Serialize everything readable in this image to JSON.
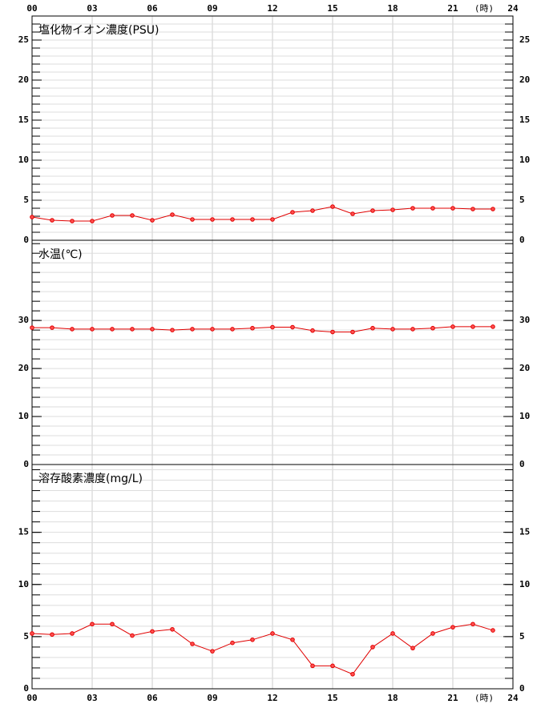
{
  "x_axis": {
    "xlim": [
      0,
      24
    ],
    "xticks": [
      {
        "value": 0,
        "label": "00"
      },
      {
        "value": 3,
        "label": "03"
      },
      {
        "value": 6,
        "label": "06"
      },
      {
        "value": 9,
        "label": "09"
      },
      {
        "value": 12,
        "label": "12"
      },
      {
        "value": 15,
        "label": "15"
      },
      {
        "value": 18,
        "label": "18"
      },
      {
        "value": 21,
        "label": "21"
      },
      {
        "value": 24,
        "label": "24"
      }
    ],
    "unit": "(時)"
  },
  "chart_data": [
    {
      "type": "line",
      "title": "塩化物イオン濃度(PSU)",
      "color": "#e00000",
      "grid": true,
      "x": [
        0,
        1,
        2,
        3,
        4,
        5,
        6,
        7,
        8,
        9,
        10,
        11,
        12,
        13,
        14,
        15,
        16,
        17,
        18,
        19,
        20,
        21,
        22,
        23
      ],
      "values": [
        2.9,
        2.5,
        2.4,
        2.4,
        3.1,
        3.1,
        2.5,
        3.2,
        2.6,
        2.6,
        2.6,
        2.6,
        2.6,
        3.5,
        3.7,
        4.2,
        3.3,
        3.7,
        3.8,
        4.0,
        4.0,
        4.0,
        3.9,
        3.9
      ],
      "ylim": [
        0,
        28
      ],
      "yticks": [
        0,
        5,
        10,
        15,
        20,
        25
      ],
      "minor_step": 1
    },
    {
      "type": "line",
      "title": "水温(℃)",
      "color": "#e00000",
      "grid": true,
      "x": [
        0,
        1,
        2,
        3,
        4,
        5,
        6,
        7,
        8,
        9,
        10,
        11,
        12,
        13,
        14,
        15,
        16,
        17,
        18,
        19,
        20,
        21,
        22,
        23
      ],
      "values": [
        28.5,
        28.5,
        28.2,
        28.2,
        28.2,
        28.2,
        28.2,
        28.0,
        28.2,
        28.2,
        28.2,
        28.4,
        28.6,
        28.6,
        27.9,
        27.6,
        27.6,
        28.4,
        28.2,
        28.2,
        28.4,
        28.7,
        28.7,
        28.7
      ],
      "ylim": [
        0,
        46.7
      ],
      "yticks": [
        0,
        10,
        20,
        30
      ],
      "minor_step": 2
    },
    {
      "type": "line",
      "title": "溶存酸素濃度(mg/L)",
      "color": "#e00000",
      "grid": true,
      "x": [
        0,
        1,
        2,
        3,
        4,
        5,
        6,
        7,
        8,
        9,
        10,
        11,
        12,
        13,
        14,
        15,
        16,
        17,
        18,
        19,
        20,
        21,
        22,
        23
      ],
      "values": [
        5.3,
        5.2,
        5.3,
        6.2,
        6.2,
        5.1,
        5.5,
        5.7,
        4.3,
        3.6,
        4.4,
        4.7,
        5.3,
        4.7,
        2.2,
        2.2,
        1.4,
        4.0,
        5.3,
        3.9,
        5.3,
        5.9,
        6.2,
        5.6
      ],
      "ylim": [
        0,
        21.5
      ],
      "yticks": [
        0,
        5,
        10,
        15
      ],
      "minor_step": 1
    }
  ]
}
